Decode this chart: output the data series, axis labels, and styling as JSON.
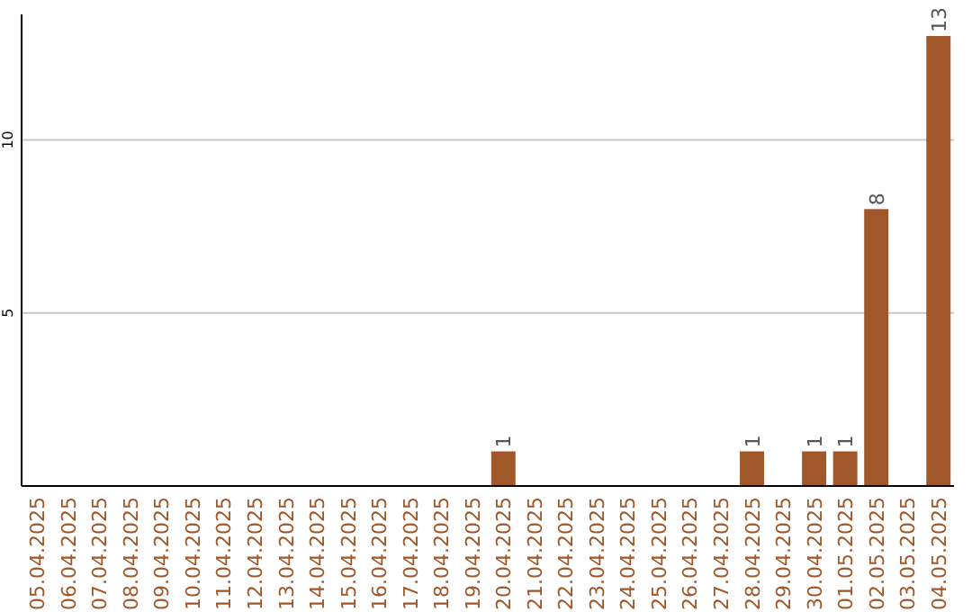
{
  "chart_data": {
    "type": "bar",
    "categories": [
      "05.04.2025",
      "06.04.2025",
      "07.04.2025",
      "08.04.2025",
      "09.04.2025",
      "10.04.2025",
      "11.04.2025",
      "12.04.2025",
      "13.04.2025",
      "14.04.2025",
      "15.04.2025",
      "16.04.2025",
      "17.04.2025",
      "18.04.2025",
      "19.04.2025",
      "20.04.2025",
      "21.04.2025",
      "22.04.2025",
      "23.04.2025",
      "24.04.2025",
      "25.04.2025",
      "26.04.2025",
      "27.04.2025",
      "28.04.2025",
      "29.04.2025",
      "30.04.2025",
      "01.05.2025",
      "02.05.2025",
      "03.05.2025",
      "04.05.2025"
    ],
    "values": [
      0,
      0,
      0,
      0,
      0,
      0,
      0,
      0,
      0,
      0,
      0,
      0,
      0,
      0,
      0,
      1,
      0,
      0,
      0,
      0,
      0,
      0,
      0,
      1,
      0,
      1,
      1,
      8,
      0,
      13
    ],
    "value_labels": [
      null,
      null,
      null,
      null,
      null,
      null,
      null,
      null,
      null,
      null,
      null,
      null,
      null,
      null,
      null,
      "1",
      null,
      null,
      null,
      null,
      null,
      null,
      null,
      "1",
      null,
      "1",
      "1",
      "8",
      null,
      "13"
    ],
    "color": "#a0572a",
    "ylim": [
      0,
      13
    ],
    "yticks": [
      5,
      10
    ],
    "grid": "y"
  }
}
